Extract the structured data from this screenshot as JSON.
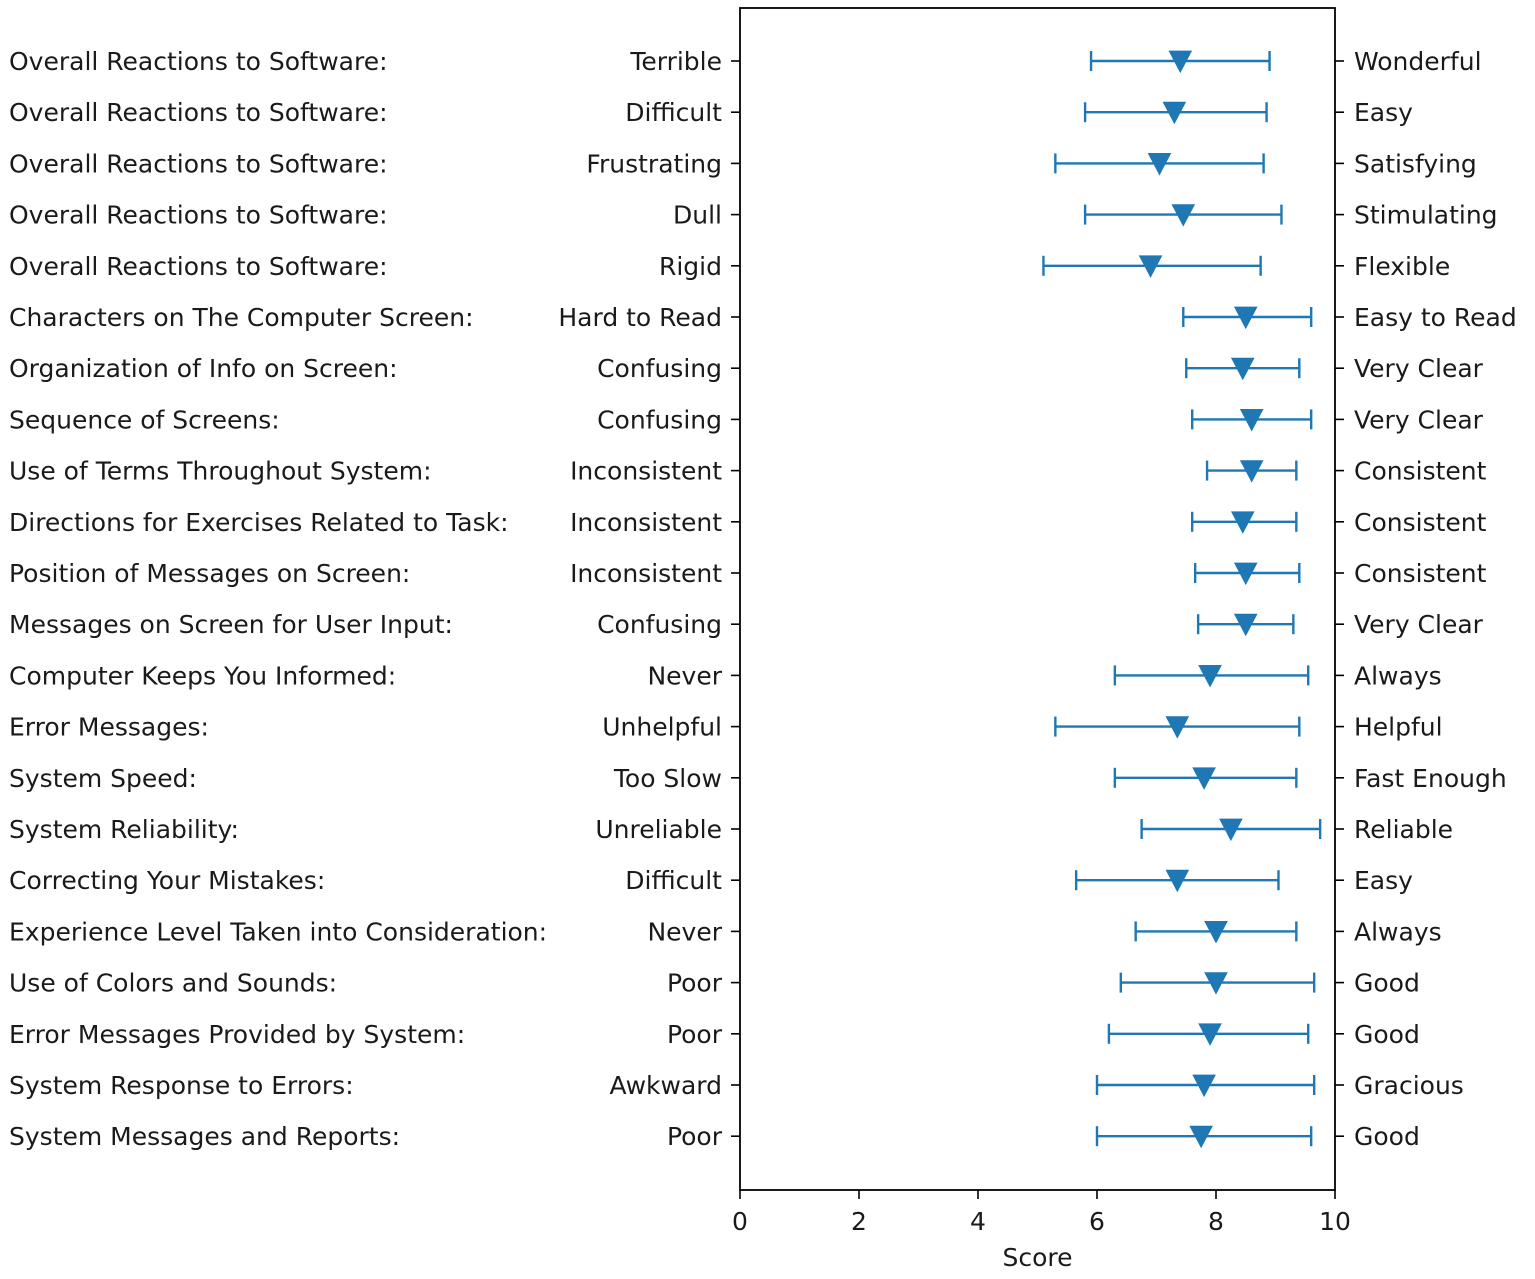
{
  "chart_data": {
    "type": "errorbar",
    "title": "",
    "xlabel": "Score",
    "ylabel": "",
    "xlim": [
      0,
      10
    ],
    "xticks": [
      0,
      2,
      4,
      6,
      8,
      10
    ],
    "grid": false,
    "marker": "triangle-down",
    "color": "#1f77b4",
    "items": [
      {
        "category": "Overall Reactions to Software:",
        "low_anchor": "Terrible",
        "high_anchor": "Wonderful",
        "mean": 7.4,
        "err_low": 5.9,
        "err_high": 8.9
      },
      {
        "category": "Overall Reactions to Software:",
        "low_anchor": "Difficult",
        "high_anchor": "Easy",
        "mean": 7.3,
        "err_low": 5.8,
        "err_high": 8.85
      },
      {
        "category": "Overall Reactions to Software:",
        "low_anchor": "Frustrating",
        "high_anchor": "Satisfying",
        "mean": 7.05,
        "err_low": 5.3,
        "err_high": 8.8
      },
      {
        "category": "Overall Reactions to Software:",
        "low_anchor": "Dull",
        "high_anchor": "Stimulating",
        "mean": 7.45,
        "err_low": 5.8,
        "err_high": 9.1
      },
      {
        "category": "Overall Reactions to Software:",
        "low_anchor": "Rigid",
        "high_anchor": "Flexible",
        "mean": 6.9,
        "err_low": 5.1,
        "err_high": 8.75
      },
      {
        "category": "Characters on The Computer Screen:",
        "low_anchor": "Hard to Read",
        "high_anchor": "Easy to Read",
        "mean": 8.5,
        "err_low": 7.45,
        "err_high": 9.6
      },
      {
        "category": "Organization of Info on Screen:",
        "low_anchor": "Confusing",
        "high_anchor": "Very Clear",
        "mean": 8.45,
        "err_low": 7.5,
        "err_high": 9.4
      },
      {
        "category": "Sequence of Screens:",
        "low_anchor": "Confusing",
        "high_anchor": "Very Clear",
        "mean": 8.6,
        "err_low": 7.6,
        "err_high": 9.6
      },
      {
        "category": "Use of Terms Throughout System:",
        "low_anchor": "Inconsistent",
        "high_anchor": "Consistent",
        "mean": 8.6,
        "err_low": 7.85,
        "err_high": 9.35
      },
      {
        "category": "Directions for Exercises Related to Task:",
        "low_anchor": "Inconsistent",
        "high_anchor": "Consistent",
        "mean": 8.45,
        "err_low": 7.6,
        "err_high": 9.35
      },
      {
        "category": "Position of Messages on Screen:",
        "low_anchor": "Inconsistent",
        "high_anchor": "Consistent",
        "mean": 8.5,
        "err_low": 7.65,
        "err_high": 9.4
      },
      {
        "category": "Messages on Screen for User Input:",
        "low_anchor": "Confusing",
        "high_anchor": "Very Clear",
        "mean": 8.5,
        "err_low": 7.7,
        "err_high": 9.3
      },
      {
        "category": "Computer Keeps You Informed:",
        "low_anchor": "Never",
        "high_anchor": "Always",
        "mean": 7.9,
        "err_low": 6.3,
        "err_high": 9.55
      },
      {
        "category": "Error Messages:",
        "low_anchor": "Unhelpful",
        "high_anchor": "Helpful",
        "mean": 7.35,
        "err_low": 5.3,
        "err_high": 9.4
      },
      {
        "category": "System Speed:",
        "low_anchor": "Too Slow",
        "high_anchor": "Fast Enough",
        "mean": 7.8,
        "err_low": 6.3,
        "err_high": 9.35
      },
      {
        "category": "System Reliability:",
        "low_anchor": "Unreliable",
        "high_anchor": "Reliable",
        "mean": 8.25,
        "err_low": 6.75,
        "err_high": 9.75
      },
      {
        "category": "Correcting Your Mistakes:",
        "low_anchor": "Difficult",
        "high_anchor": "Easy",
        "mean": 7.35,
        "err_low": 5.65,
        "err_high": 9.05
      },
      {
        "category": "Experience Level Taken into Consideration:",
        "low_anchor": "Never",
        "high_anchor": "Always",
        "mean": 8.0,
        "err_low": 6.65,
        "err_high": 9.35
      },
      {
        "category": "Use of Colors and Sounds:",
        "low_anchor": "Poor",
        "high_anchor": "Good",
        "mean": 8.0,
        "err_low": 6.4,
        "err_high": 9.65
      },
      {
        "category": "Error Messages Provided by System:",
        "low_anchor": "Poor",
        "high_anchor": "Good",
        "mean": 7.9,
        "err_low": 6.2,
        "err_high": 9.55
      },
      {
        "category": "System Response to Errors:",
        "low_anchor": "Awkward",
        "high_anchor": "Gracious",
        "mean": 7.8,
        "err_low": 6.0,
        "err_high": 9.65
      },
      {
        "category": "System Messages and Reports:",
        "low_anchor": "Poor",
        "high_anchor": "Good",
        "mean": 7.75,
        "err_low": 6.0,
        "err_high": 9.6
      }
    ]
  }
}
